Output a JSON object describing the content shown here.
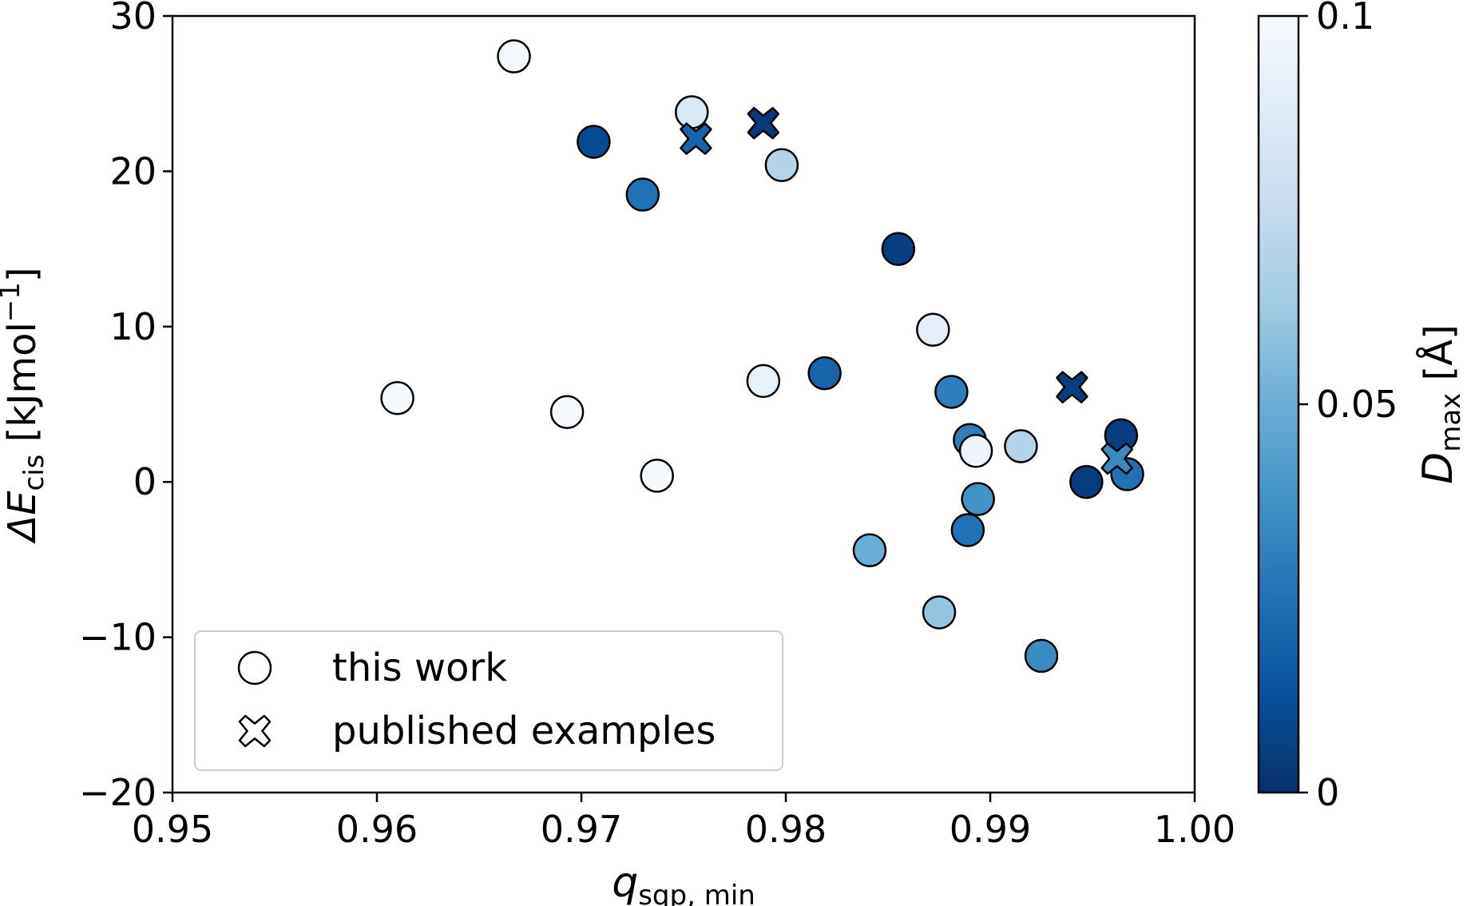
{
  "chart_data": {
    "type": "scatter",
    "xlabel": {
      "main": "q",
      "sub": "sqp, min"
    },
    "ylabel": {
      "prefix": "ΔE",
      "sub": "cis",
      "unit": "[kJmol",
      "sup": "−1",
      "close": "]"
    },
    "xlim": [
      0.95,
      1.0
    ],
    "ylim": [
      -20,
      30
    ],
    "x_ticks": [
      {
        "value": 0.95,
        "label": "0.95"
      },
      {
        "value": 0.96,
        "label": "0.96"
      },
      {
        "value": 0.97,
        "label": "0.97"
      },
      {
        "value": 0.98,
        "label": "0.98"
      },
      {
        "value": 0.99,
        "label": "0.99"
      },
      {
        "value": 1.0,
        "label": "1.00"
      }
    ],
    "y_ticks": [
      {
        "value": -20,
        "label": "−20"
      },
      {
        "value": -10,
        "label": "−10"
      },
      {
        "value": 0,
        "label": "0"
      },
      {
        "value": 10,
        "label": "10"
      },
      {
        "value": 20,
        "label": "20"
      },
      {
        "value": 30,
        "label": "30"
      }
    ],
    "grid": false,
    "colorbar": {
      "label": {
        "main": "D",
        "sub": "max",
        "unit": "[Å]"
      },
      "range": [
        0,
        0.1
      ],
      "ticks": [
        {
          "value": 0,
          "label": "0"
        },
        {
          "value": 0.05,
          "label": "0.05"
        },
        {
          "value": 0.1,
          "label": "0.1"
        }
      ],
      "colormap": [
        "#08306b",
        "#08519c",
        "#2171b5",
        "#4292c6",
        "#6baed6",
        "#9ecae1",
        "#c6dbef",
        "#deebf7",
        "#f7fbff"
      ]
    },
    "legend": {
      "placement": "lower-left",
      "entries": [
        {
          "label": "this work",
          "marker": "circle"
        },
        {
          "label": "published examples",
          "marker": "cross"
        }
      ]
    },
    "series": [
      {
        "name": "this work",
        "marker": "circle",
        "points": [
          {
            "x": 0.9667,
            "y": 27.4,
            "c": 0.098
          },
          {
            "x": 0.9754,
            "y": 23.8,
            "c": 0.085
          },
          {
            "x": 0.9706,
            "y": 21.9,
            "c": 0.01
          },
          {
            "x": 0.9798,
            "y": 20.4,
            "c": 0.07
          },
          {
            "x": 0.973,
            "y": 18.5,
            "c": 0.025
          },
          {
            "x": 0.9855,
            "y": 15.0,
            "c": 0.005
          },
          {
            "x": 0.9872,
            "y": 9.8,
            "c": 0.09
          },
          {
            "x": 0.9819,
            "y": 7.0,
            "c": 0.02
          },
          {
            "x": 0.9789,
            "y": 6.5,
            "c": 0.092
          },
          {
            "x": 0.9881,
            "y": 5.8,
            "c": 0.03
          },
          {
            "x": 0.961,
            "y": 5.4,
            "c": 0.099
          },
          {
            "x": 0.9693,
            "y": 4.5,
            "c": 0.1
          },
          {
            "x": 0.9964,
            "y": 3.0,
            "c": 0.005
          },
          {
            "x": 0.989,
            "y": 2.7,
            "c": 0.03
          },
          {
            "x": 0.9915,
            "y": 2.3,
            "c": 0.07
          },
          {
            "x": 0.9893,
            "y": 2.0,
            "c": 0.095
          },
          {
            "x": 0.9967,
            "y": 0.5,
            "c": 0.025
          },
          {
            "x": 0.9737,
            "y": 0.4,
            "c": 0.1
          },
          {
            "x": 0.9947,
            "y": 0.0,
            "c": 0.004
          },
          {
            "x": 0.9894,
            "y": -1.1,
            "c": 0.038
          },
          {
            "x": 0.9889,
            "y": -3.1,
            "c": 0.025
          },
          {
            "x": 0.9841,
            "y": -4.4,
            "c": 0.05
          },
          {
            "x": 0.9875,
            "y": -8.4,
            "c": 0.06
          },
          {
            "x": 0.9925,
            "y": -11.2,
            "c": 0.035
          }
        ]
      },
      {
        "name": "published examples",
        "marker": "cross",
        "points": [
          {
            "x": 0.9789,
            "y": 23.1,
            "c": 0.003
          },
          {
            "x": 0.9756,
            "y": 22.1,
            "c": 0.02
          },
          {
            "x": 0.994,
            "y": 6.1,
            "c": 0.005
          },
          {
            "x": 0.9962,
            "y": 1.5,
            "c": 0.035
          }
        ]
      }
    ]
  }
}
